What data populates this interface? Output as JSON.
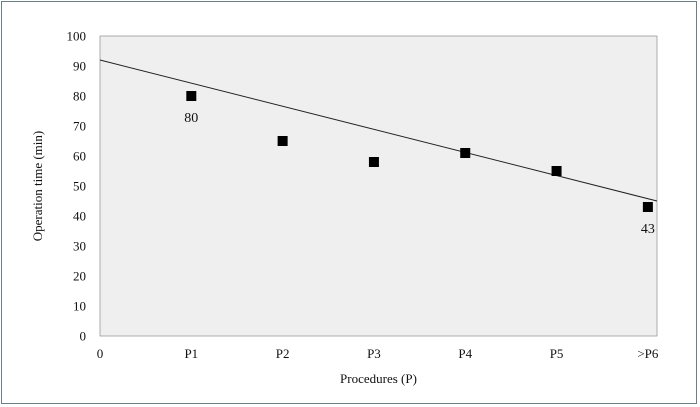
{
  "chart_data": {
    "type": "scatter",
    "title": "",
    "xlabel": "Procedures (P)",
    "ylabel": "Operation time (min)",
    "ylim": [
      0,
      100
    ],
    "y_ticks": [
      "0",
      "10",
      "20",
      "30",
      "40",
      "50",
      "60",
      "70",
      "80",
      "90",
      "100"
    ],
    "x_ticks": [
      {
        "label": "0",
        "x": 0
      },
      {
        "label": "P1",
        "x": 1
      },
      {
        "label": "P2",
        "x": 2
      },
      {
        "label": "P3",
        "x": 3
      },
      {
        "label": "P4",
        "x": 4
      },
      {
        "label": "P5",
        "x": 5
      },
      {
        "label": ">P6",
        "x": 6
      }
    ],
    "series": [
      {
        "points": [
          {
            "x": "P1",
            "y": 80
          },
          {
            "x": "P2",
            "y": 65
          },
          {
            "x": "P3",
            "y": 58
          },
          {
            "x": "P4",
            "y": 61
          },
          {
            "x": "P5",
            "y": 55
          },
          {
            "x": ">P6",
            "y": 43
          }
        ]
      }
    ],
    "data_labels": [
      {
        "x": "P1",
        "text": "80"
      },
      {
        "x": ">P6",
        "text": "43"
      }
    ],
    "trendline": {
      "type": "linear",
      "y_at_0": 92,
      "y_at_end": 45
    },
    "grid": false,
    "legend": "none",
    "colors": {
      "plot_background": "#efefef",
      "marker": "#000000",
      "trendline": "#222222",
      "frame_border": "#6b7f86"
    }
  }
}
